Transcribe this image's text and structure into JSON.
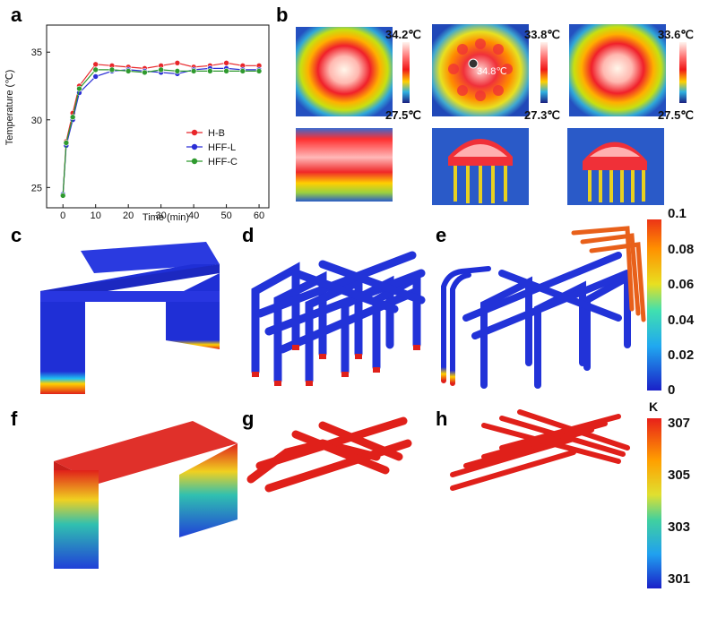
{
  "panels": {
    "a": "a",
    "b": "b",
    "c": "c",
    "d": "d",
    "e": "e",
    "f": "f",
    "g": "g",
    "h": "h"
  },
  "chart_data": {
    "type": "line",
    "xlabel": "Time (min)",
    "ylabel": "Temperature (℃)",
    "xlim": [
      -5,
      63
    ],
    "ylim": [
      23.5,
      37
    ],
    "xticks": [
      0,
      10,
      20,
      30,
      40,
      50,
      60
    ],
    "yticks": [
      25,
      30,
      35
    ],
    "x": [
      0,
      1,
      3,
      5,
      10,
      15,
      20,
      25,
      30,
      35,
      40,
      45,
      50,
      55,
      60
    ],
    "series": [
      {
        "name": "H-B",
        "color": "#e8262a",
        "values": [
          24.4,
          28.4,
          30.5,
          32.5,
          34.1,
          34.0,
          33.9,
          33.8,
          34.0,
          34.2,
          33.9,
          34.0,
          34.2,
          34.0,
          34.0
        ]
      },
      {
        "name": "HFF-L",
        "color": "#2b2fd6",
        "values": [
          24.5,
          28.1,
          30.0,
          32.0,
          33.2,
          33.6,
          33.7,
          33.6,
          33.5,
          33.4,
          33.7,
          33.8,
          33.8,
          33.7,
          33.7
        ]
      },
      {
        "name": "HFF-C",
        "color": "#2f9a2f",
        "values": [
          24.4,
          28.3,
          30.2,
          32.3,
          33.7,
          33.7,
          33.6,
          33.5,
          33.7,
          33.6,
          33.6,
          33.6,
          33.6,
          33.6,
          33.6
        ]
      }
    ],
    "legend_position": "center-right"
  },
  "thermal": {
    "scales": [
      {
        "max": "34.2℃",
        "min": "27.5℃"
      },
      {
        "max": "33.8℃",
        "min": "27.3℃"
      },
      {
        "max": "33.6℃",
        "min": "27.5℃"
      }
    ],
    "spot_label": "34.8℃"
  },
  "colorbars": {
    "fraction": {
      "ticks": [
        "0.1",
        "0.08",
        "0.06",
        "0.04",
        "0.02",
        "0"
      ]
    },
    "temperature": {
      "unit": "K",
      "ticks": [
        "307",
        "305",
        "303",
        "301"
      ]
    }
  },
  "colors": {
    "sim_blue": "#1f2fd6",
    "sim_red": "#e0201a",
    "ir_bg": "#2a5fc8"
  }
}
